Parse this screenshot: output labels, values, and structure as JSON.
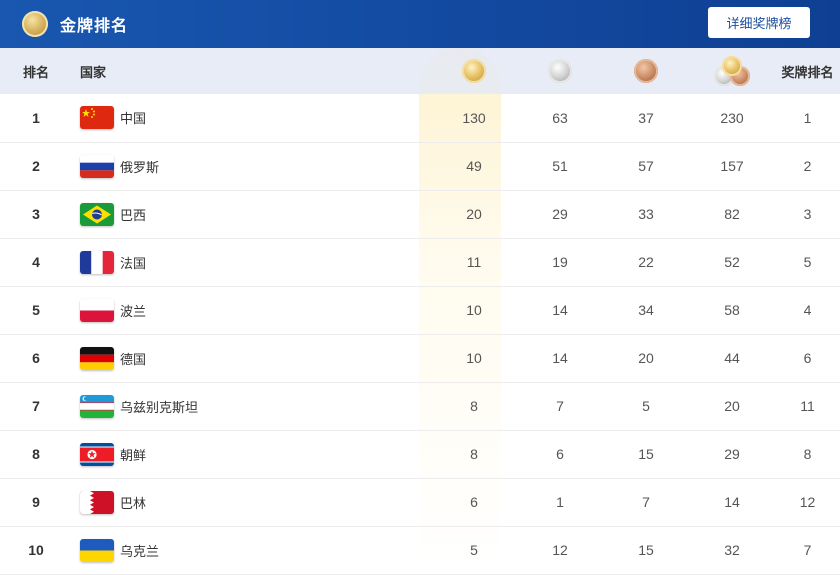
{
  "header": {
    "title": "金牌排名",
    "detail_button": "详细奖牌榜",
    "logo_icon": "medal-logo-icon"
  },
  "columns": {
    "rank": "排名",
    "country": "国家",
    "gold_icon": "gold-medal-icon",
    "silver_icon": "silver-medal-icon",
    "bronze_icon": "bronze-medal-icon",
    "total_icon": "medal-stack-icon",
    "medal_rank": "奖牌排名"
  },
  "colors": {
    "header_bg": "#0e3f93",
    "gold_column": "#fdf2cf"
  },
  "rows": [
    {
      "rank": "1",
      "country": "中国",
      "flag": "china",
      "gold": "130",
      "silver": "63",
      "bronze": "37",
      "total": "230",
      "medal_rank": "1"
    },
    {
      "rank": "2",
      "country": "俄罗斯",
      "flag": "russia",
      "gold": "49",
      "silver": "51",
      "bronze": "57",
      "total": "157",
      "medal_rank": "2"
    },
    {
      "rank": "3",
      "country": "巴西",
      "flag": "brazil",
      "gold": "20",
      "silver": "29",
      "bronze": "33",
      "total": "82",
      "medal_rank": "3"
    },
    {
      "rank": "4",
      "country": "法国",
      "flag": "france",
      "gold": "11",
      "silver": "19",
      "bronze": "22",
      "total": "52",
      "medal_rank": "5"
    },
    {
      "rank": "5",
      "country": "波兰",
      "flag": "poland",
      "gold": "10",
      "silver": "14",
      "bronze": "34",
      "total": "58",
      "medal_rank": "4"
    },
    {
      "rank": "6",
      "country": "德国",
      "flag": "germany",
      "gold": "10",
      "silver": "14",
      "bronze": "20",
      "total": "44",
      "medal_rank": "6"
    },
    {
      "rank": "7",
      "country": "乌兹别克斯坦",
      "flag": "uzbekistan",
      "gold": "8",
      "silver": "7",
      "bronze": "5",
      "total": "20",
      "medal_rank": "11"
    },
    {
      "rank": "8",
      "country": "朝鲜",
      "flag": "north-korea",
      "gold": "8",
      "silver": "6",
      "bronze": "15",
      "total": "29",
      "medal_rank": "8"
    },
    {
      "rank": "9",
      "country": "巴林",
      "flag": "bahrain",
      "gold": "6",
      "silver": "1",
      "bronze": "7",
      "total": "14",
      "medal_rank": "12"
    },
    {
      "rank": "10",
      "country": "乌克兰",
      "flag": "ukraine",
      "gold": "5",
      "silver": "12",
      "bronze": "15",
      "total": "32",
      "medal_rank": "7"
    }
  ]
}
